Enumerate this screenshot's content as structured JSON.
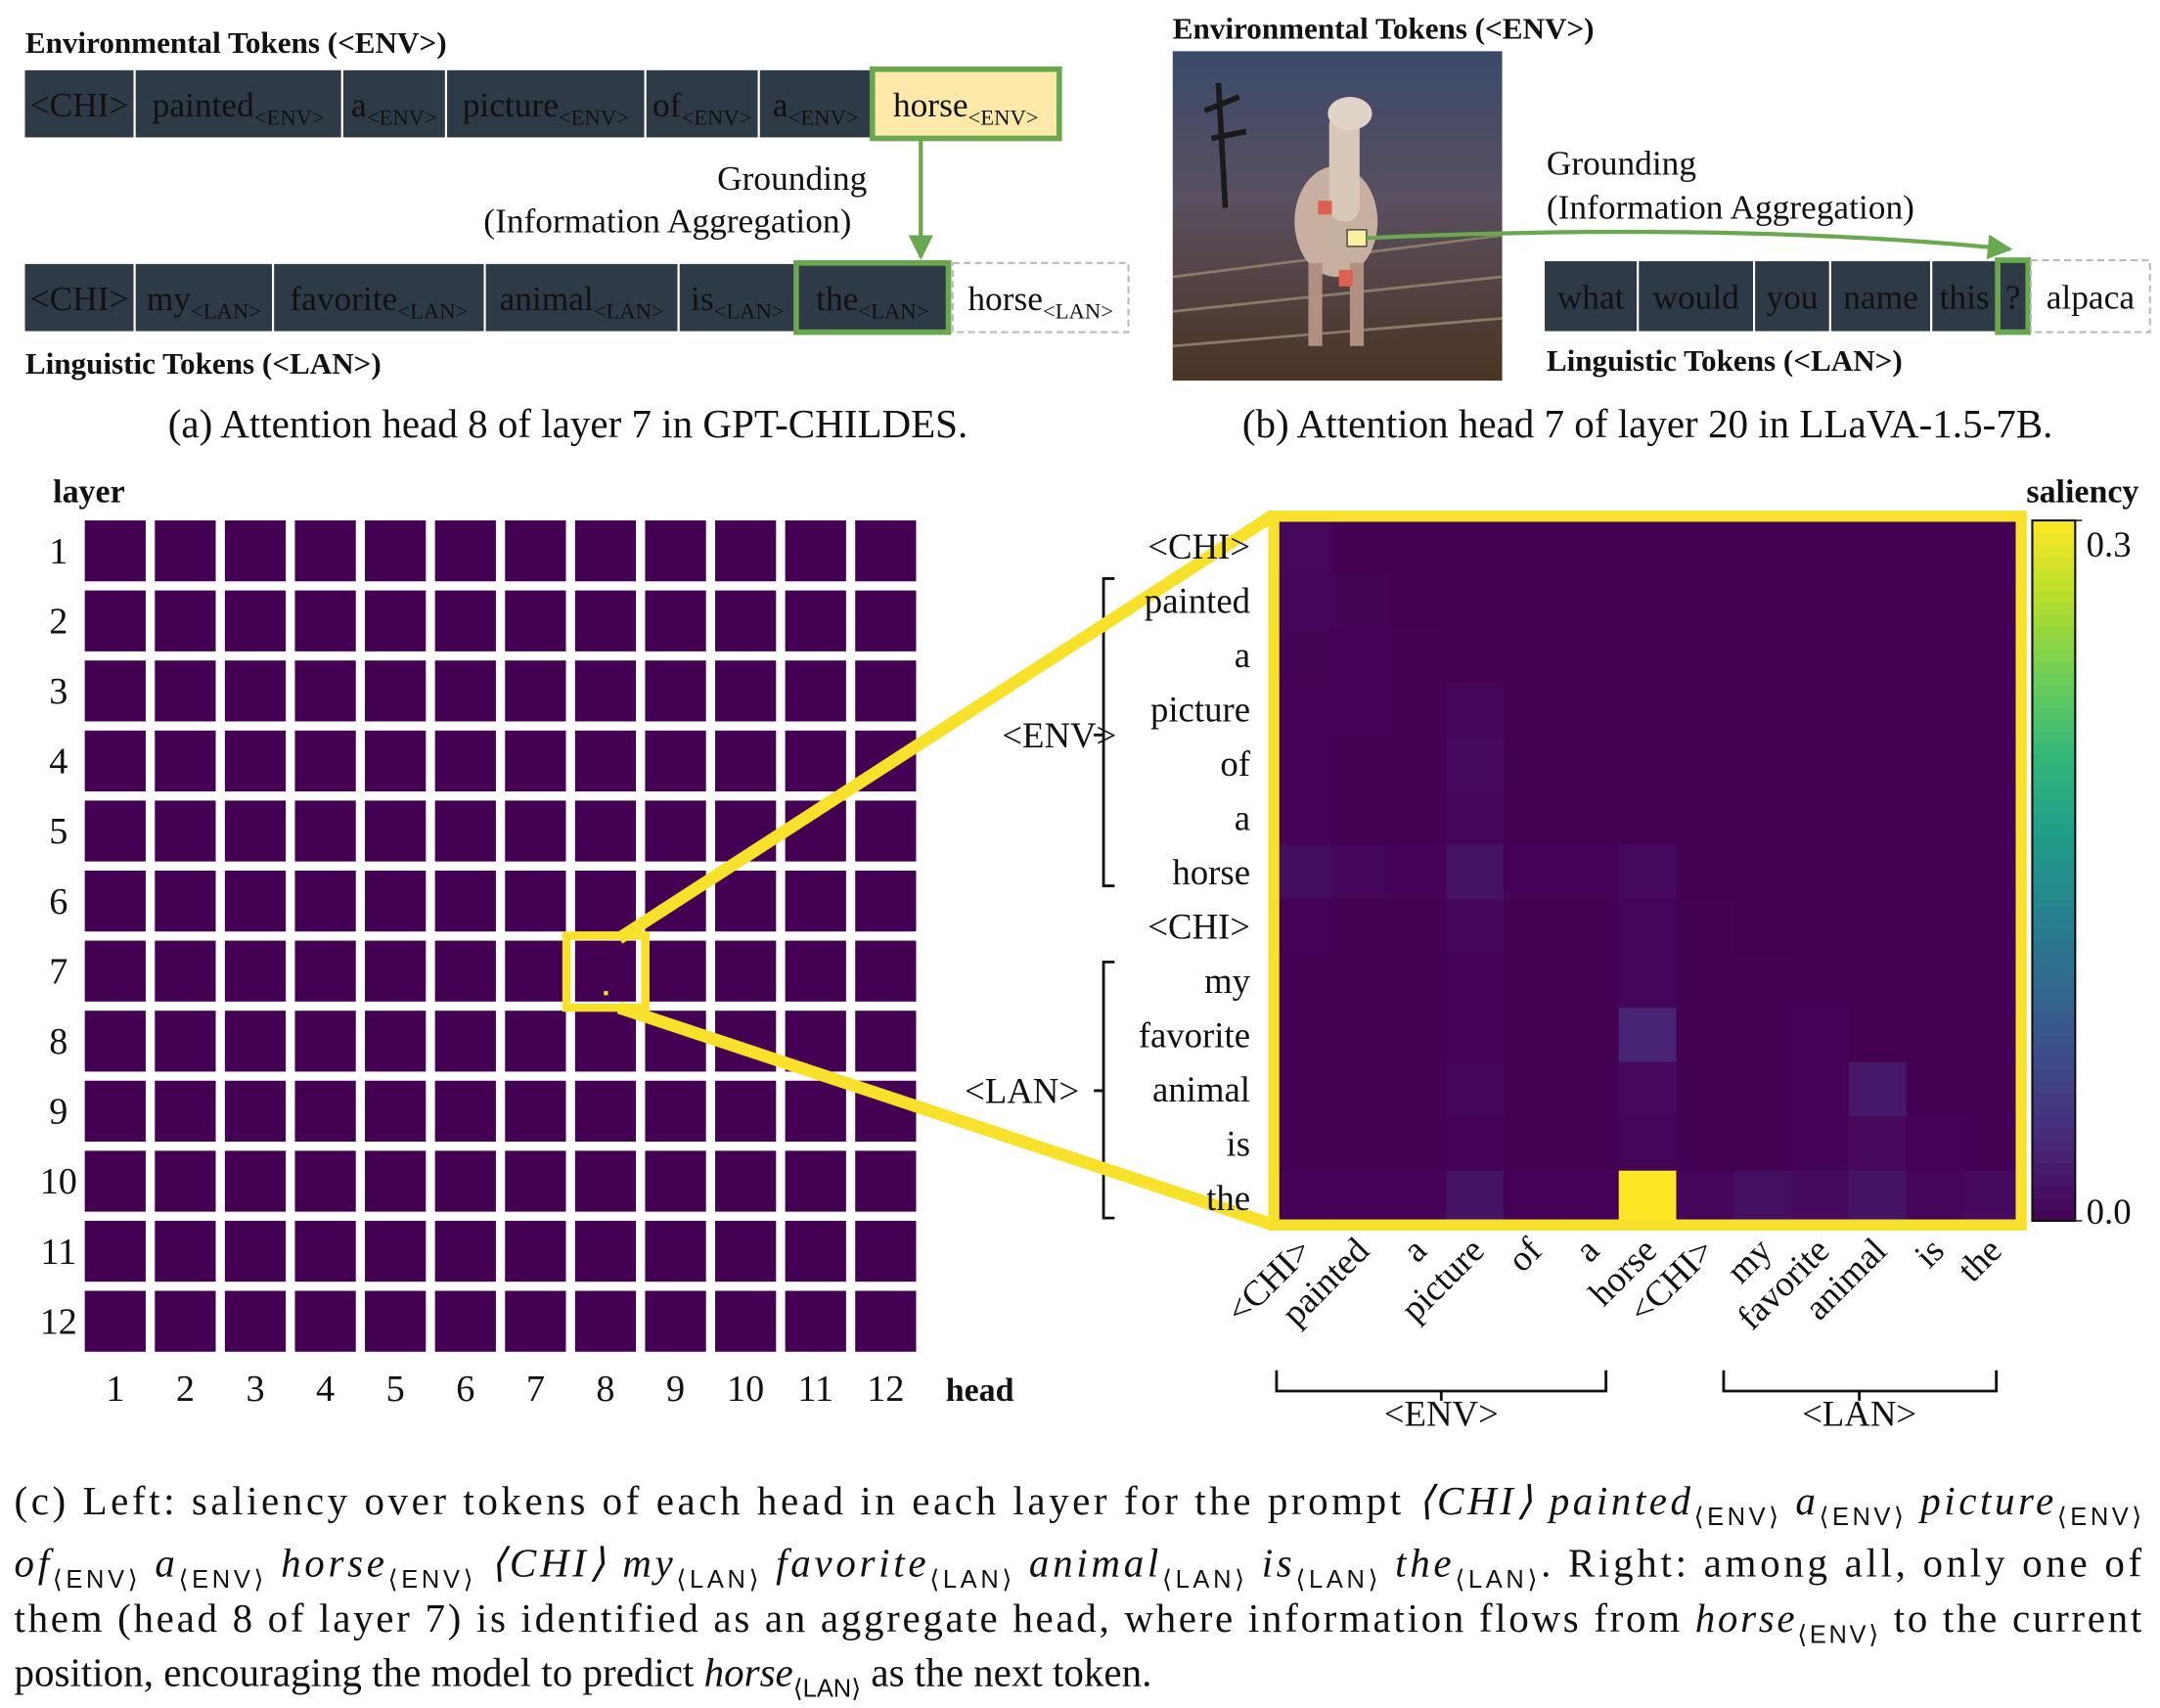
{
  "panel_a": {
    "env_title": "Environmental Tokens (<ENV>)",
    "lan_title": "Linguistic Tokens (<LAN>)",
    "env_tokens": [
      {
        "word": "<CHI>"
      },
      {
        "word": "painted",
        "sub": "<ENV>"
      },
      {
        "word": "a",
        "sub": "<ENV>"
      },
      {
        "word": "picture",
        "sub": "<ENV>"
      },
      {
        "word": "of",
        "sub": "<ENV>"
      },
      {
        "word": "a",
        "sub": "<ENV>"
      },
      {
        "word": "horse",
        "sub": "<ENV>"
      }
    ],
    "lan_tokens": [
      {
        "word": "<CHI>"
      },
      {
        "word": "my",
        "sub": "<LAN>"
      },
      {
        "word": "favorite",
        "sub": "<LAN>"
      },
      {
        "word": "animal",
        "sub": "<LAN>"
      },
      {
        "word": "is",
        "sub": "<LAN>"
      },
      {
        "word": "the",
        "sub": "<LAN>"
      }
    ],
    "prediction": {
      "word": "horse",
      "sub": "<LAN>"
    },
    "arrow_label": [
      "Grounding",
      "(Information Aggregation)"
    ],
    "caption": "(a) Attention head 8 of layer 7 in GPT-CHILDES."
  },
  "panel_b": {
    "env_title": "Environmental Tokens (<ENV>)",
    "lan_title": "Linguistic Tokens (<LAN>)",
    "lan_tokens": [
      "what",
      "would",
      "you",
      "name",
      "this",
      "?"
    ],
    "prediction": "alpaca",
    "arrow_label": [
      "Grounding",
      "(Information Aggregation)"
    ],
    "caption": "(b) Attention head 7 of layer 20 in LLaVA-1.5-7B."
  },
  "panel_c": {
    "y_label": "layer",
    "x_label": "head",
    "layers": [
      1,
      2,
      3,
      4,
      5,
      6,
      7,
      8,
      9,
      10,
      11,
      12
    ],
    "heads": [
      1,
      2,
      3,
      4,
      5,
      6,
      7,
      8,
      9,
      10,
      11,
      12
    ],
    "heatmap": {
      "tokens": [
        "<CHI>",
        "painted",
        "a",
        "picture",
        "of",
        "a",
        "horse",
        "<CHI>",
        "my",
        "favorite",
        "animal",
        "is",
        "the"
      ],
      "groups": [
        "<ENV>",
        "<LAN>"
      ],
      "colorbar_label": "saliency",
      "clim": [
        0,
        0.3
      ],
      "cticks": [
        {
          "value": 0,
          "label": "0.0"
        },
        0.3
      ],
      "values": [
        [
          0.006,
          0,
          0,
          0,
          0,
          0,
          0,
          0,
          0,
          0,
          0,
          0,
          0
        ],
        [
          0.004,
          0.003,
          0,
          0,
          0,
          0,
          0,
          0,
          0,
          0,
          0,
          0,
          0
        ],
        [
          0.003,
          0.002,
          0.001,
          0,
          0,
          0,
          0,
          0,
          0,
          0,
          0,
          0,
          0
        ],
        [
          0.002,
          0.002,
          0.001,
          0.004,
          0,
          0,
          0,
          0,
          0,
          0,
          0,
          0,
          0
        ],
        [
          0.002,
          0.001,
          0.001,
          0.008,
          0.001,
          0,
          0,
          0,
          0,
          0,
          0,
          0,
          0
        ],
        [
          0.002,
          0.001,
          0.001,
          0.004,
          0.001,
          0.001,
          0,
          0,
          0,
          0,
          0,
          0,
          0
        ],
        [
          0.01,
          0.004,
          0.002,
          0.015,
          0.002,
          0.002,
          0.008,
          0,
          0,
          0,
          0,
          0,
          0
        ],
        [
          0.002,
          0.001,
          0.001,
          0.004,
          0.001,
          0.001,
          0.004,
          0.001,
          0,
          0,
          0,
          0,
          0
        ],
        [
          0.001,
          0.001,
          0.001,
          0.002,
          0.001,
          0.001,
          0.004,
          0.001,
          0.001,
          0,
          0,
          0,
          0
        ],
        [
          0.001,
          0.001,
          0.001,
          0.002,
          0.001,
          0.001,
          0.03,
          0.001,
          0.001,
          0.002,
          0,
          0,
          0
        ],
        [
          0.001,
          0.001,
          0.001,
          0.004,
          0.001,
          0.001,
          0.006,
          0.001,
          0.001,
          0.002,
          0.02,
          0,
          0
        ],
        [
          0.001,
          0.001,
          0.001,
          0.002,
          0.001,
          0.001,
          0.004,
          0.001,
          0.001,
          0.002,
          0.006,
          0.002,
          0
        ],
        [
          0.002,
          0.002,
          0.002,
          0.015,
          0.002,
          0.002,
          0.3,
          0.004,
          0.012,
          0.008,
          0.015,
          0.004,
          0.008
        ]
      ]
    }
  },
  "caption": {
    "lines": [
      [
        {
          "text": "(c) Left: saliency over tokens of each head in each layer for the prompt ",
          "style": "roman"
        },
        {
          "text": "⟨CHI⟩ painted",
          "style": "italic"
        },
        {
          "text": "⟨ENV⟩",
          "style": "sub"
        },
        {
          "text": " a",
          "style": "italic"
        },
        {
          "text": "⟨ENV⟩",
          "style": "sub"
        },
        {
          "text": " picture",
          "style": "italic"
        },
        {
          "text": "⟨ENV⟩",
          "style": "sub"
        }
      ],
      [
        {
          "text": "of",
          "style": "italic"
        },
        {
          "text": "⟨ENV⟩",
          "style": "sub"
        },
        {
          "text": " a",
          "style": "italic"
        },
        {
          "text": "⟨ENV⟩",
          "style": "sub"
        },
        {
          "text": " horse",
          "style": "italic"
        },
        {
          "text": "⟨ENV⟩",
          "style": "sub"
        },
        {
          "text": " ⟨CHI⟩ my",
          "style": "italic"
        },
        {
          "text": "⟨LAN⟩",
          "style": "sub"
        },
        {
          "text": " favorite",
          "style": "italic"
        },
        {
          "text": "⟨LAN⟩",
          "style": "sub"
        },
        {
          "text": " animal",
          "style": "italic"
        },
        {
          "text": "⟨LAN⟩",
          "style": "sub"
        },
        {
          "text": " is",
          "style": "italic"
        },
        {
          "text": "⟨LAN⟩",
          "style": "sub"
        },
        {
          "text": " the",
          "style": "italic"
        },
        {
          "text": "⟨LAN⟩",
          "style": "sub"
        },
        {
          "text": ". Right: among all, only one of",
          "style": "roman"
        }
      ],
      [
        {
          "text": "them (head 8 of layer 7) is identified as an aggregate head, where information flows from ",
          "style": "roman"
        },
        {
          "text": "horse",
          "style": "italic"
        },
        {
          "text": "⟨ENV⟩",
          "style": "sub"
        },
        {
          "text": " to the current",
          "style": "roman"
        }
      ],
      [
        {
          "text": "position, encouraging the model to predict ",
          "style": "roman"
        },
        {
          "text": "horse",
          "style": "italic"
        },
        {
          "text": "⟨LAN⟩",
          "style": "sub"
        },
        {
          "text": " as the next token.",
          "style": "roman"
        }
      ]
    ]
  }
}
